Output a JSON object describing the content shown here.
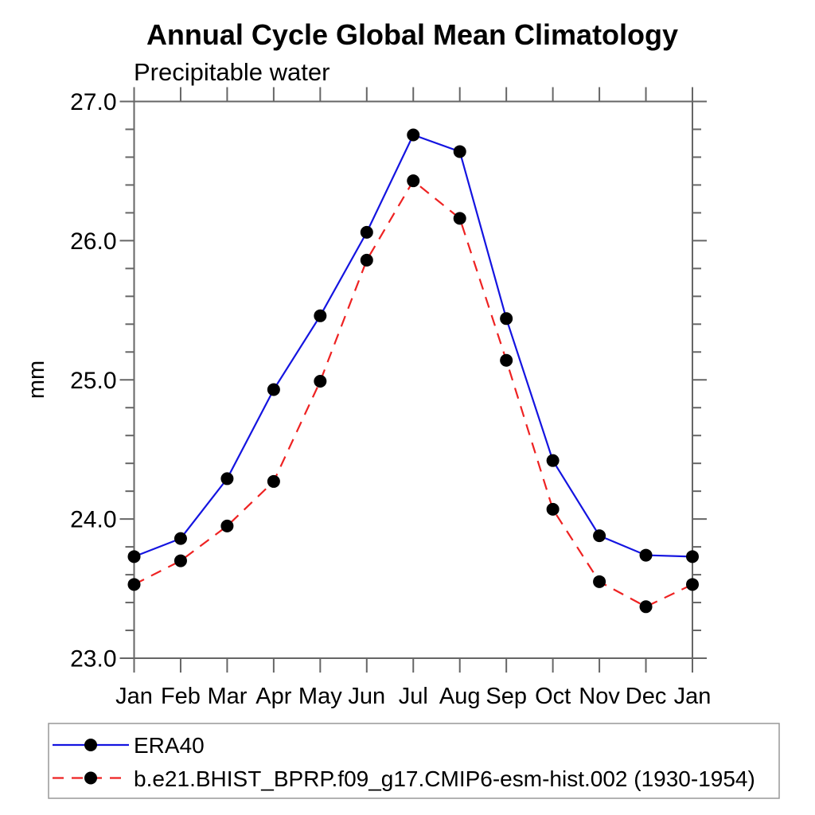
{
  "title": "Annual Cycle Global Mean Climatology",
  "subtitle": "Precipitable water",
  "ylabel": "mm",
  "colors": {
    "series1": "#1414e0",
    "series2": "#ee2222",
    "marker": "#000000",
    "frame": "#666666"
  },
  "chart_data": {
    "type": "line",
    "title": "Annual Cycle Global Mean Climatology",
    "subtitle": "Precipitable water",
    "xlabel": "",
    "ylabel": "mm",
    "categories": [
      "Jan",
      "Feb",
      "Mar",
      "Apr",
      "May",
      "Jun",
      "Jul",
      "Aug",
      "Sep",
      "Oct",
      "Nov",
      "Dec",
      "Jan"
    ],
    "series": [
      {
        "name": "ERA40",
        "color": "#1414e0",
        "line_style": "solid",
        "marker": "filled-circle",
        "marker_color": "#000000",
        "values": [
          23.73,
          23.86,
          24.29,
          24.93,
          25.46,
          26.06,
          26.76,
          26.64,
          25.44,
          24.42,
          23.88,
          23.74,
          23.73
        ]
      },
      {
        "name": "b.e21.BHIST_BPRP.f09_g17.CMIP6-esm-hist.002 (1930-1954)",
        "color": "#ee2222",
        "line_style": "dashed",
        "marker": "filled-circle",
        "marker_color": "#000000",
        "values": [
          23.53,
          23.7,
          23.95,
          24.27,
          24.99,
          25.86,
          26.43,
          26.16,
          25.14,
          24.07,
          23.55,
          23.37,
          23.53
        ]
      }
    ],
    "ylim": [
      23.0,
      27.0
    ],
    "yticks": [
      23.0,
      24.0,
      25.0,
      26.0,
      27.0
    ],
    "ytick_labels": [
      "23.0",
      "24.0",
      "25.0",
      "26.0",
      "27.0"
    ],
    "minor_tick_step": 0.2,
    "grid": false,
    "legend_position": "bottom"
  }
}
